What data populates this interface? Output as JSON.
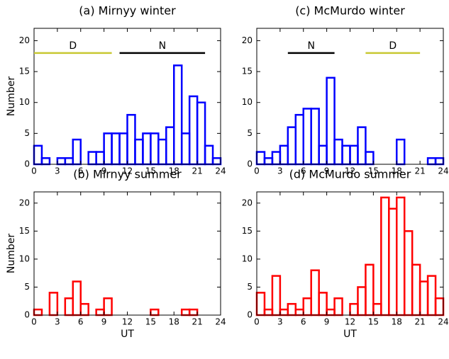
{
  "chart_data": [
    {
      "type": "histogram",
      "title": "(a) Mirnyy winter",
      "ylabel": "Number",
      "color": "#0000ff",
      "bins": [
        0,
        1,
        2,
        3,
        4,
        5,
        6,
        7,
        8,
        9,
        10,
        11,
        12,
        13,
        14,
        15,
        16,
        17,
        18,
        19,
        20,
        21,
        22,
        23,
        24
      ],
      "values": [
        3,
        1,
        0,
        1,
        1,
        4,
        0,
        2,
        2,
        5,
        5,
        5,
        8,
        4,
        5,
        5,
        4,
        6,
        16,
        5,
        11,
        10,
        3,
        1
      ],
      "xlim": [
        0,
        24
      ],
      "xticks": [
        0,
        3,
        6,
        9,
        12,
        15,
        18,
        21,
        24
      ],
      "ylim": [
        0,
        22
      ],
      "yticks": [
        0,
        5,
        10,
        15,
        20
      ],
      "segments": [
        {
          "label": "D",
          "x": [
            0,
            10
          ],
          "y": 18,
          "color": "#c8c832"
        },
        {
          "label": "N",
          "x": [
            11,
            22
          ],
          "y": 18,
          "color": "#000000"
        }
      ]
    },
    {
      "type": "histogram",
      "title": "(b) Mirnyy summer",
      "ylabel": "Number",
      "xlabel": "UT",
      "color": "#ff0000",
      "bins": [
        0,
        1,
        2,
        3,
        4,
        5,
        6,
        7,
        8,
        9,
        10,
        11,
        12,
        13,
        14,
        15,
        16,
        17,
        18,
        19,
        20,
        21,
        22,
        23,
        24
      ],
      "values": [
        1,
        0,
        4,
        0,
        3,
        6,
        2,
        0,
        1,
        3,
        0,
        0,
        0,
        0,
        0,
        1,
        0,
        0,
        0,
        1,
        1,
        0,
        0,
        0
      ],
      "xlim": [
        0,
        24
      ],
      "xticks": [
        0,
        3,
        6,
        9,
        12,
        15,
        18,
        21,
        24
      ],
      "ylim": [
        0,
        22
      ],
      "yticks": [
        0,
        5,
        10,
        15,
        20
      ]
    },
    {
      "type": "histogram",
      "title": "(c) McMurdo winter",
      "color": "#0000ff",
      "bins": [
        0,
        1,
        2,
        3,
        4,
        5,
        6,
        7,
        8,
        9,
        10,
        11,
        12,
        13,
        14,
        15,
        16,
        17,
        18,
        19,
        20,
        21,
        22,
        23,
        24
      ],
      "values": [
        2,
        1,
        2,
        3,
        6,
        8,
        9,
        9,
        3,
        14,
        4,
        3,
        3,
        6,
        2,
        0,
        0,
        0,
        4,
        0,
        0,
        0,
        1,
        1
      ],
      "xlim": [
        0,
        24
      ],
      "xticks": [
        0,
        3,
        6,
        9,
        12,
        15,
        18,
        21,
        24
      ],
      "ylim": [
        0,
        22
      ],
      "yticks": [
        0,
        5,
        10,
        15,
        20
      ],
      "segments": [
        {
          "label": "N",
          "x": [
            4,
            10
          ],
          "y": 18,
          "color": "#000000"
        },
        {
          "label": "D",
          "x": [
            14,
            21
          ],
          "y": 18,
          "color": "#c8c832"
        }
      ]
    },
    {
      "type": "histogram",
      "title": "(d) McMurdo summer",
      "xlabel": "UT",
      "color": "#ff0000",
      "bins": [
        0,
        1,
        2,
        3,
        4,
        5,
        6,
        7,
        8,
        9,
        10,
        11,
        12,
        13,
        14,
        15,
        16,
        17,
        18,
        19,
        20,
        21,
        22,
        23,
        24
      ],
      "values": [
        4,
        1,
        7,
        1,
        2,
        1,
        3,
        8,
        4,
        1,
        3,
        0,
        2,
        5,
        9,
        2,
        21,
        19,
        21,
        15,
        9,
        6,
        7,
        3
      ],
      "xlim": [
        0,
        24
      ],
      "xticks": [
        0,
        3,
        6,
        9,
        12,
        15,
        18,
        21,
        24
      ],
      "ylim": [
        0,
        22
      ],
      "yticks": [
        0,
        5,
        10,
        15,
        20
      ]
    }
  ]
}
